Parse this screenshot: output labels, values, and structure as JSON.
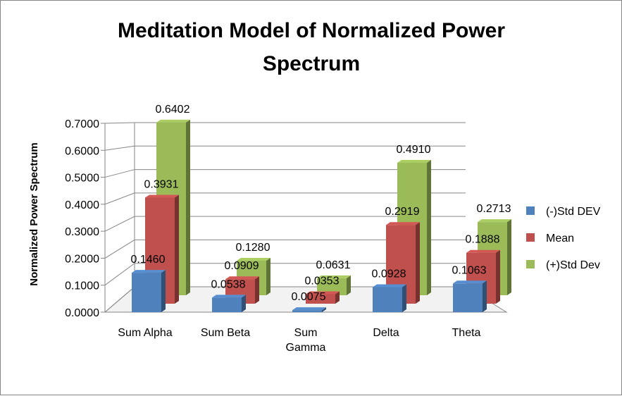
{
  "chart_data": {
    "type": "bar",
    "title_lines": [
      "Meditation Model of Normalized Power",
      "Spectrum"
    ],
    "ylabel": "Normalized Power Spectrum",
    "xlabel": "",
    "ylim": [
      0,
      0.7
    ],
    "y_ticks": [
      "0.0000",
      "0.1000",
      "0.2000",
      "0.3000",
      "0.4000",
      "0.5000",
      "0.6000",
      "0.7000"
    ],
    "categories": [
      [
        "Sum Alpha"
      ],
      [
        "Sum Beta"
      ],
      [
        "Sum",
        "Gamma"
      ],
      [
        "Delta"
      ],
      [
        "Theta"
      ]
    ],
    "series": [
      {
        "name": "(-)Std DEV",
        "color": "#4F81BD",
        "values": [
          0.146,
          0.0538,
          0.0075,
          0.0928,
          0.1063
        ],
        "labels": [
          "0.1460",
          "0.0538",
          "0.0075",
          "0.0928",
          "0.1063"
        ]
      },
      {
        "name": "Mean",
        "color": "#C0504D",
        "values": [
          0.3931,
          0.0909,
          0.0353,
          0.2919,
          0.1888
        ],
        "labels": [
          "0.3931",
          "0.0909",
          "0.0353",
          "0.2919",
          "0.1888"
        ]
      },
      {
        "name": "(+)Std Dev",
        "color": "#9BBB59",
        "values": [
          0.6402,
          0.128,
          0.0631,
          0.491,
          0.2713
        ],
        "labels": [
          "0.6402",
          "0.1280",
          "0.0631",
          "0.4910",
          "0.2713"
        ]
      }
    ],
    "grid": true,
    "legend": "right",
    "style": "3d-clustered-column"
  }
}
